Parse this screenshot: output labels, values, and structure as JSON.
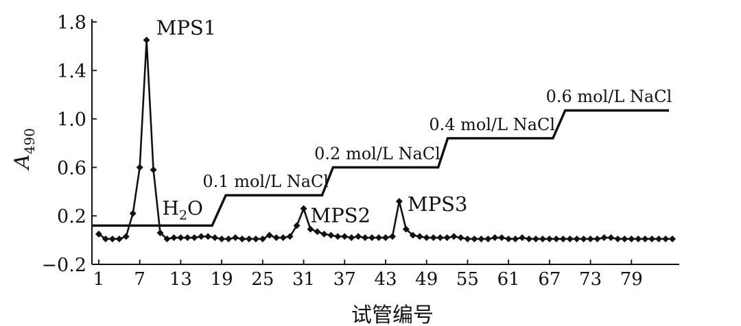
{
  "chart_data": {
    "type": "line",
    "xlabel": "试管编号",
    "ylabel": {
      "main": "A",
      "sub": "490"
    },
    "xlim": [
      0,
      86
    ],
    "ylim": [
      -0.2,
      1.8
    ],
    "x_ticks": [
      1,
      7,
      13,
      19,
      25,
      31,
      37,
      43,
      49,
      55,
      61,
      67,
      73,
      79
    ],
    "y_ticks": [
      {
        "value": -0.2,
        "label": "−0.2"
      },
      {
        "value": 0.2,
        "label": "0.2"
      },
      {
        "value": 0.6,
        "label": "0.6"
      },
      {
        "value": 1.0,
        "label": "1.0"
      },
      {
        "value": 1.4,
        "label": "1.4"
      },
      {
        "value": 1.8,
        "label": "1.8"
      }
    ],
    "series": [
      {
        "x": [
          1,
          2,
          3,
          4,
          5,
          6,
          7,
          8,
          9,
          10,
          11,
          12,
          13,
          14,
          15,
          16,
          17,
          18,
          19,
          20,
          21,
          22,
          23,
          24,
          25,
          26,
          27,
          28,
          29,
          30,
          31,
          32,
          33,
          34,
          35,
          36,
          37,
          38,
          39,
          40,
          41,
          42,
          43,
          44,
          45,
          46,
          47,
          48,
          49,
          50,
          51,
          52,
          53,
          54,
          55,
          56,
          57,
          58,
          59,
          60,
          61,
          62,
          63,
          64,
          65,
          66,
          67,
          68,
          69,
          70,
          71,
          72,
          73,
          74,
          75,
          76,
          77,
          78,
          79,
          80,
          81,
          82,
          83,
          84,
          85
        ],
        "values": [
          0.05,
          0.01,
          0.01,
          0.01,
          0.03,
          0.22,
          0.6,
          1.65,
          0.58,
          0.06,
          0.01,
          0.02,
          0.02,
          0.02,
          0.02,
          0.03,
          0.03,
          0.02,
          0.01,
          0.01,
          0.02,
          0.01,
          0.01,
          0.01,
          0.01,
          0.04,
          0.02,
          0.02,
          0.03,
          0.12,
          0.26,
          0.09,
          0.07,
          0.05,
          0.04,
          0.03,
          0.03,
          0.02,
          0.03,
          0.02,
          0.02,
          0.02,
          0.02,
          0.03,
          0.32,
          0.09,
          0.04,
          0.03,
          0.02,
          0.02,
          0.02,
          0.02,
          0.03,
          0.02,
          0.01,
          0.01,
          0.01,
          0.01,
          0.02,
          0.02,
          0.01,
          0.01,
          0.02,
          0.01,
          0.01,
          0.01,
          0.01,
          0.01,
          0.01,
          0.01,
          0.01,
          0.01,
          0.01,
          0.01,
          0.02,
          0.02,
          0.01,
          0.01,
          0.01,
          0.01,
          0.01,
          0.01,
          0.01,
          0.01,
          0.01
        ]
      }
    ],
    "elution_steps": [
      {
        "label": "H",
        "sub": "2",
        "suffix": "O",
        "level": 0.12,
        "x_start": 0,
        "x_end": 17.6
      },
      {
        "label": "0.1 mol/L NaCl",
        "level": 0.37,
        "x_start": 19.6,
        "x_end": 33.7
      },
      {
        "label": "0.2 mol/L NaCl",
        "level": 0.6,
        "x_start": 35.3,
        "x_end": 50.7
      },
      {
        "label": "0.4 mol/L NaCl",
        "level": 0.84,
        "x_start": 52.1,
        "x_end": 67.5
      },
      {
        "label": "0.6 mol/L NaCl",
        "level": 1.07,
        "x_start": 69.3,
        "x_end": 84.5
      }
    ],
    "peak_labels": [
      {
        "text": "MPS1",
        "x": 8,
        "value": 1.65
      },
      {
        "text": "MPS2",
        "x": 31,
        "value": 0.26
      },
      {
        "text": "MPS3",
        "x": 45,
        "value": 0.32
      }
    ],
    "grid": false,
    "marker": "diamond",
    "line_color": "#111111"
  }
}
